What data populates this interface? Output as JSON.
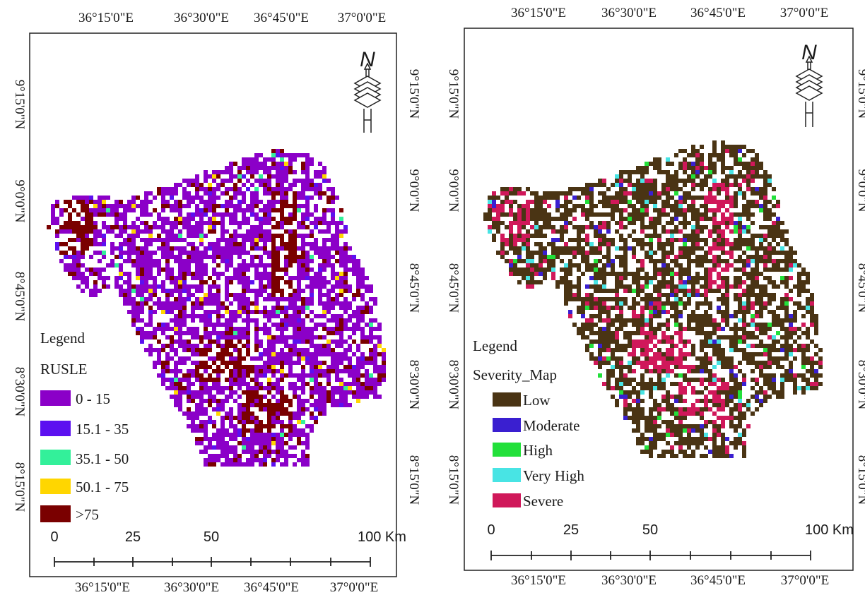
{
  "maps": [
    {
      "id": "rusle",
      "top_ticks": [
        "36°15'0\"E",
        "36°30'0\"E",
        "36°45'0\"E",
        "37°0'0\"E"
      ],
      "bottom_ticks": [
        "36°15'0\"E",
        "36°30'0\"E",
        "36°45'0\"E",
        "37°0'0\"E"
      ],
      "left_ticks": [
        "9°15'0\"N",
        "9°0'0\"N",
        "8°45'0\"N",
        "8°30'0\"N",
        "8°15'0\"N"
      ],
      "right_ticks": [
        "9°15'0\"N",
        "9°0'0\"N",
        "8°45'0\"N",
        "8°30'0\"N",
        "8°15'0\"N"
      ],
      "north_label": "N",
      "legend": {
        "title": "Legend",
        "subtitle": "RUSLE",
        "items": [
          {
            "label": "0 - 15",
            "color": "#8b00c8"
          },
          {
            "label": "15.1 - 35",
            "color": "#5c10f0"
          },
          {
            "label": "35.1 - 50",
            "color": "#33f09a"
          },
          {
            "label": "50.1 - 75",
            "color": "#ffd600"
          },
          {
            "label": ">75",
            "color": "#7a0000"
          }
        ]
      },
      "scalebar": {
        "labels": [
          "0",
          "25",
          "50",
          "100 Km"
        ]
      }
    },
    {
      "id": "severity",
      "top_ticks": [
        "36°15'0\"E",
        "36°30'0\"E",
        "36°45'0\"E",
        "37°0'0\"E"
      ],
      "bottom_ticks": [
        "36°15'0\"E",
        "36°30'0\"E",
        "36°45'0\"E",
        "37°0'0\"E"
      ],
      "left_ticks": [
        "9°15'0\"N",
        "9°0'0\"N",
        "8°45'0\"N",
        "8°30'0\"N",
        "8°15'0\"N"
      ],
      "right_ticks": [
        "9°15'0\"N",
        "9°0'0\"N",
        "8°45'0\"N",
        "8°30'0\"N",
        "8°15'0\"N"
      ],
      "north_label": "N",
      "legend": {
        "title": "Legend",
        "subtitle": "Severity_Map",
        "items": [
          {
            "label": "Low",
            "color": "#4a3414"
          },
          {
            "label": "Moderate",
            "color": "#3a1fd0"
          },
          {
            "label": "High",
            "color": "#22e03a"
          },
          {
            "label": "Very High",
            "color": "#48e4e4"
          },
          {
            "label": "Severe",
            "color": "#d0185a"
          }
        ]
      },
      "scalebar": {
        "labels": [
          "0",
          "25",
          "50",
          "100 Km"
        ]
      }
    }
  ]
}
